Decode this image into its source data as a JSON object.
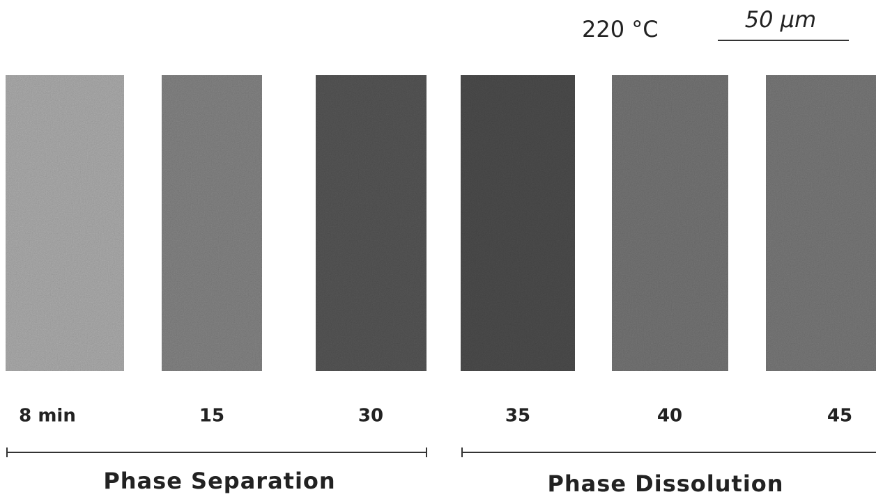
{
  "header": {
    "temperature": "220 °C",
    "scale_bar": "50 μm"
  },
  "panels": [
    {
      "label": "8 min"
    },
    {
      "label": "15"
    },
    {
      "label": "30"
    },
    {
      "label": "35"
    },
    {
      "label": "40"
    },
    {
      "label": "45"
    }
  ],
  "groups": [
    {
      "label": "Phase Separation"
    },
    {
      "label": "Phase Dissolution"
    }
  ]
}
